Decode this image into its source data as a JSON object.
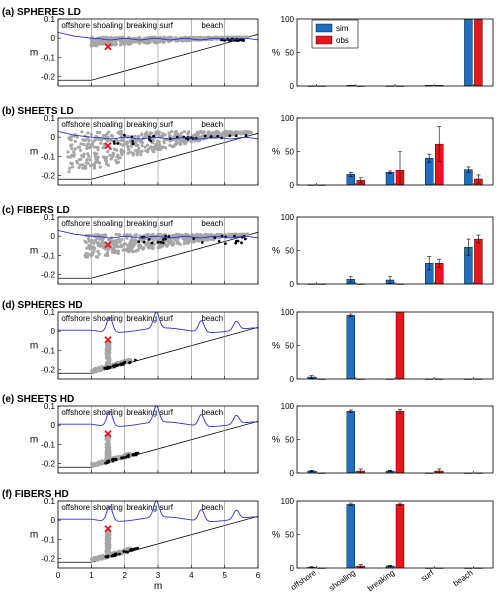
{
  "colors": {
    "sim": "#1f6fc0",
    "obs": "#e8161b",
    "wave": "#2f33d6",
    "cloud": "#a6a6a6",
    "dots": "#000000",
    "release": "#e8161b"
  },
  "zones": [
    "offshore",
    "shoaling",
    "breaking",
    "surf",
    "beach"
  ],
  "xlabel_left": "m",
  "ylabel_left": "m",
  "ylabel_right": "%",
  "left_ylim": [
    -0.25,
    0.1
  ],
  "left_yticks": [
    "0.1",
    "0",
    "-0.1",
    "-0.2"
  ],
  "left_xlim": [
    0,
    6
  ],
  "left_xticks": [
    "0",
    "1",
    "2",
    "3",
    "4",
    "5",
    "6"
  ],
  "right_ylim": [
    0,
    100
  ],
  "right_yticks": [
    "100",
    "50",
    "0"
  ],
  "legend": {
    "sim": "sim",
    "obs": "obs"
  },
  "chart_data": [
    {
      "type": "bar",
      "title": "(a) SPHERES LD",
      "categories": [
        "offshore",
        "shoaling",
        "breaking",
        "surf",
        "beach"
      ],
      "series": [
        {
          "name": "sim",
          "values": [
            0,
            1,
            0,
            1,
            99
          ],
          "err": [
            0,
            0,
            0,
            0,
            0
          ]
        },
        {
          "name": "obs",
          "values": [
            0,
            0,
            0,
            1,
            99
          ],
          "err": [
            0,
            0,
            0,
            0,
            0
          ]
        }
      ]
    },
    {
      "type": "bar",
      "title": "(b) SHEETS LD",
      "categories": [
        "offshore",
        "shoaling",
        "breaking",
        "surf",
        "beach"
      ],
      "series": [
        {
          "name": "sim",
          "values": [
            0,
            16,
            19,
            40,
            23
          ],
          "err": [
            0,
            3,
            2,
            6,
            4
          ]
        },
        {
          "name": "obs",
          "values": [
            0,
            7,
            22,
            61,
            9
          ],
          "err": [
            0,
            4,
            28,
            26,
            6
          ]
        }
      ]
    },
    {
      "type": "bar",
      "title": "(c) FIBERS LD",
      "categories": [
        "offshore",
        "shoaling",
        "breaking",
        "surf",
        "beach"
      ],
      "series": [
        {
          "name": "sim",
          "values": [
            0,
            7,
            6,
            31,
            55
          ],
          "err": [
            0,
            4,
            5,
            10,
            12
          ]
        },
        {
          "name": "obs",
          "values": [
            0,
            0,
            0,
            31,
            67
          ],
          "err": [
            0,
            0,
            0,
            6,
            6
          ]
        }
      ]
    },
    {
      "type": "bar",
      "title": "(d) SPHERES HD",
      "categories": [
        "offshore",
        "shoaling",
        "breaking",
        "surf",
        "beach"
      ],
      "series": [
        {
          "name": "sim",
          "values": [
            3,
            95,
            0,
            0,
            0
          ],
          "err": [
            2,
            2,
            0,
            0,
            0
          ]
        },
        {
          "name": "obs",
          "values": [
            0,
            0,
            100,
            0,
            0
          ],
          "err": [
            0,
            0,
            0,
            0,
            0
          ]
        }
      ]
    },
    {
      "type": "bar",
      "title": "(e) SHEETS HD",
      "categories": [
        "offshore",
        "shoaling",
        "breaking",
        "surf",
        "beach"
      ],
      "series": [
        {
          "name": "sim",
          "values": [
            3,
            92,
            3,
            0,
            0
          ],
          "err": [
            1,
            2,
            1,
            0,
            0
          ]
        },
        {
          "name": "obs",
          "values": [
            0,
            3,
            92,
            3,
            0
          ],
          "err": [
            0,
            3,
            3,
            3,
            0
          ]
        }
      ]
    },
    {
      "type": "bar",
      "title": "(f) FIBERS HD",
      "categories": [
        "offshore",
        "shoaling",
        "breaking",
        "surf",
        "beach"
      ],
      "series": [
        {
          "name": "sim",
          "values": [
            1,
            95,
            3,
            0,
            0
          ],
          "err": [
            1,
            2,
            1,
            0,
            0
          ]
        },
        {
          "name": "obs",
          "values": [
            0,
            3,
            95,
            0,
            0
          ],
          "err": [
            0,
            2,
            2,
            0,
            0
          ]
        }
      ]
    }
  ]
}
